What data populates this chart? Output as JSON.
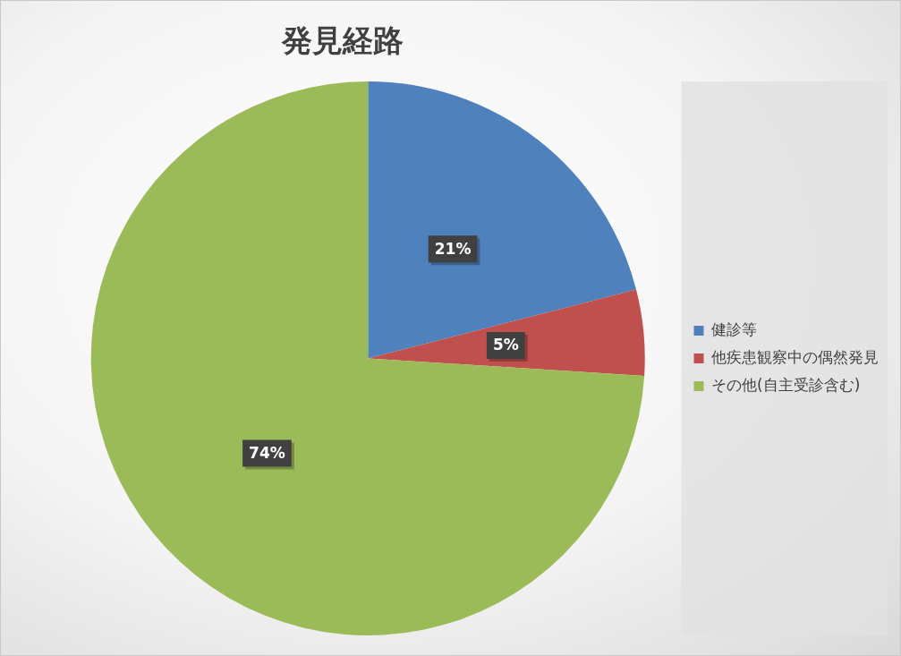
{
  "chart_data": {
    "type": "pie",
    "title": "発見経路",
    "categories": [
      "健診等",
      "他疾患観察中の偶然発見",
      "その他(自主受診含む)"
    ],
    "values": [
      21,
      5,
      74
    ],
    "colors": [
      "#4f81bd",
      "#c0504d",
      "#9bbb59"
    ],
    "value_labels": [
      "21%",
      "5%",
      "74%"
    ],
    "legend": "right"
  }
}
